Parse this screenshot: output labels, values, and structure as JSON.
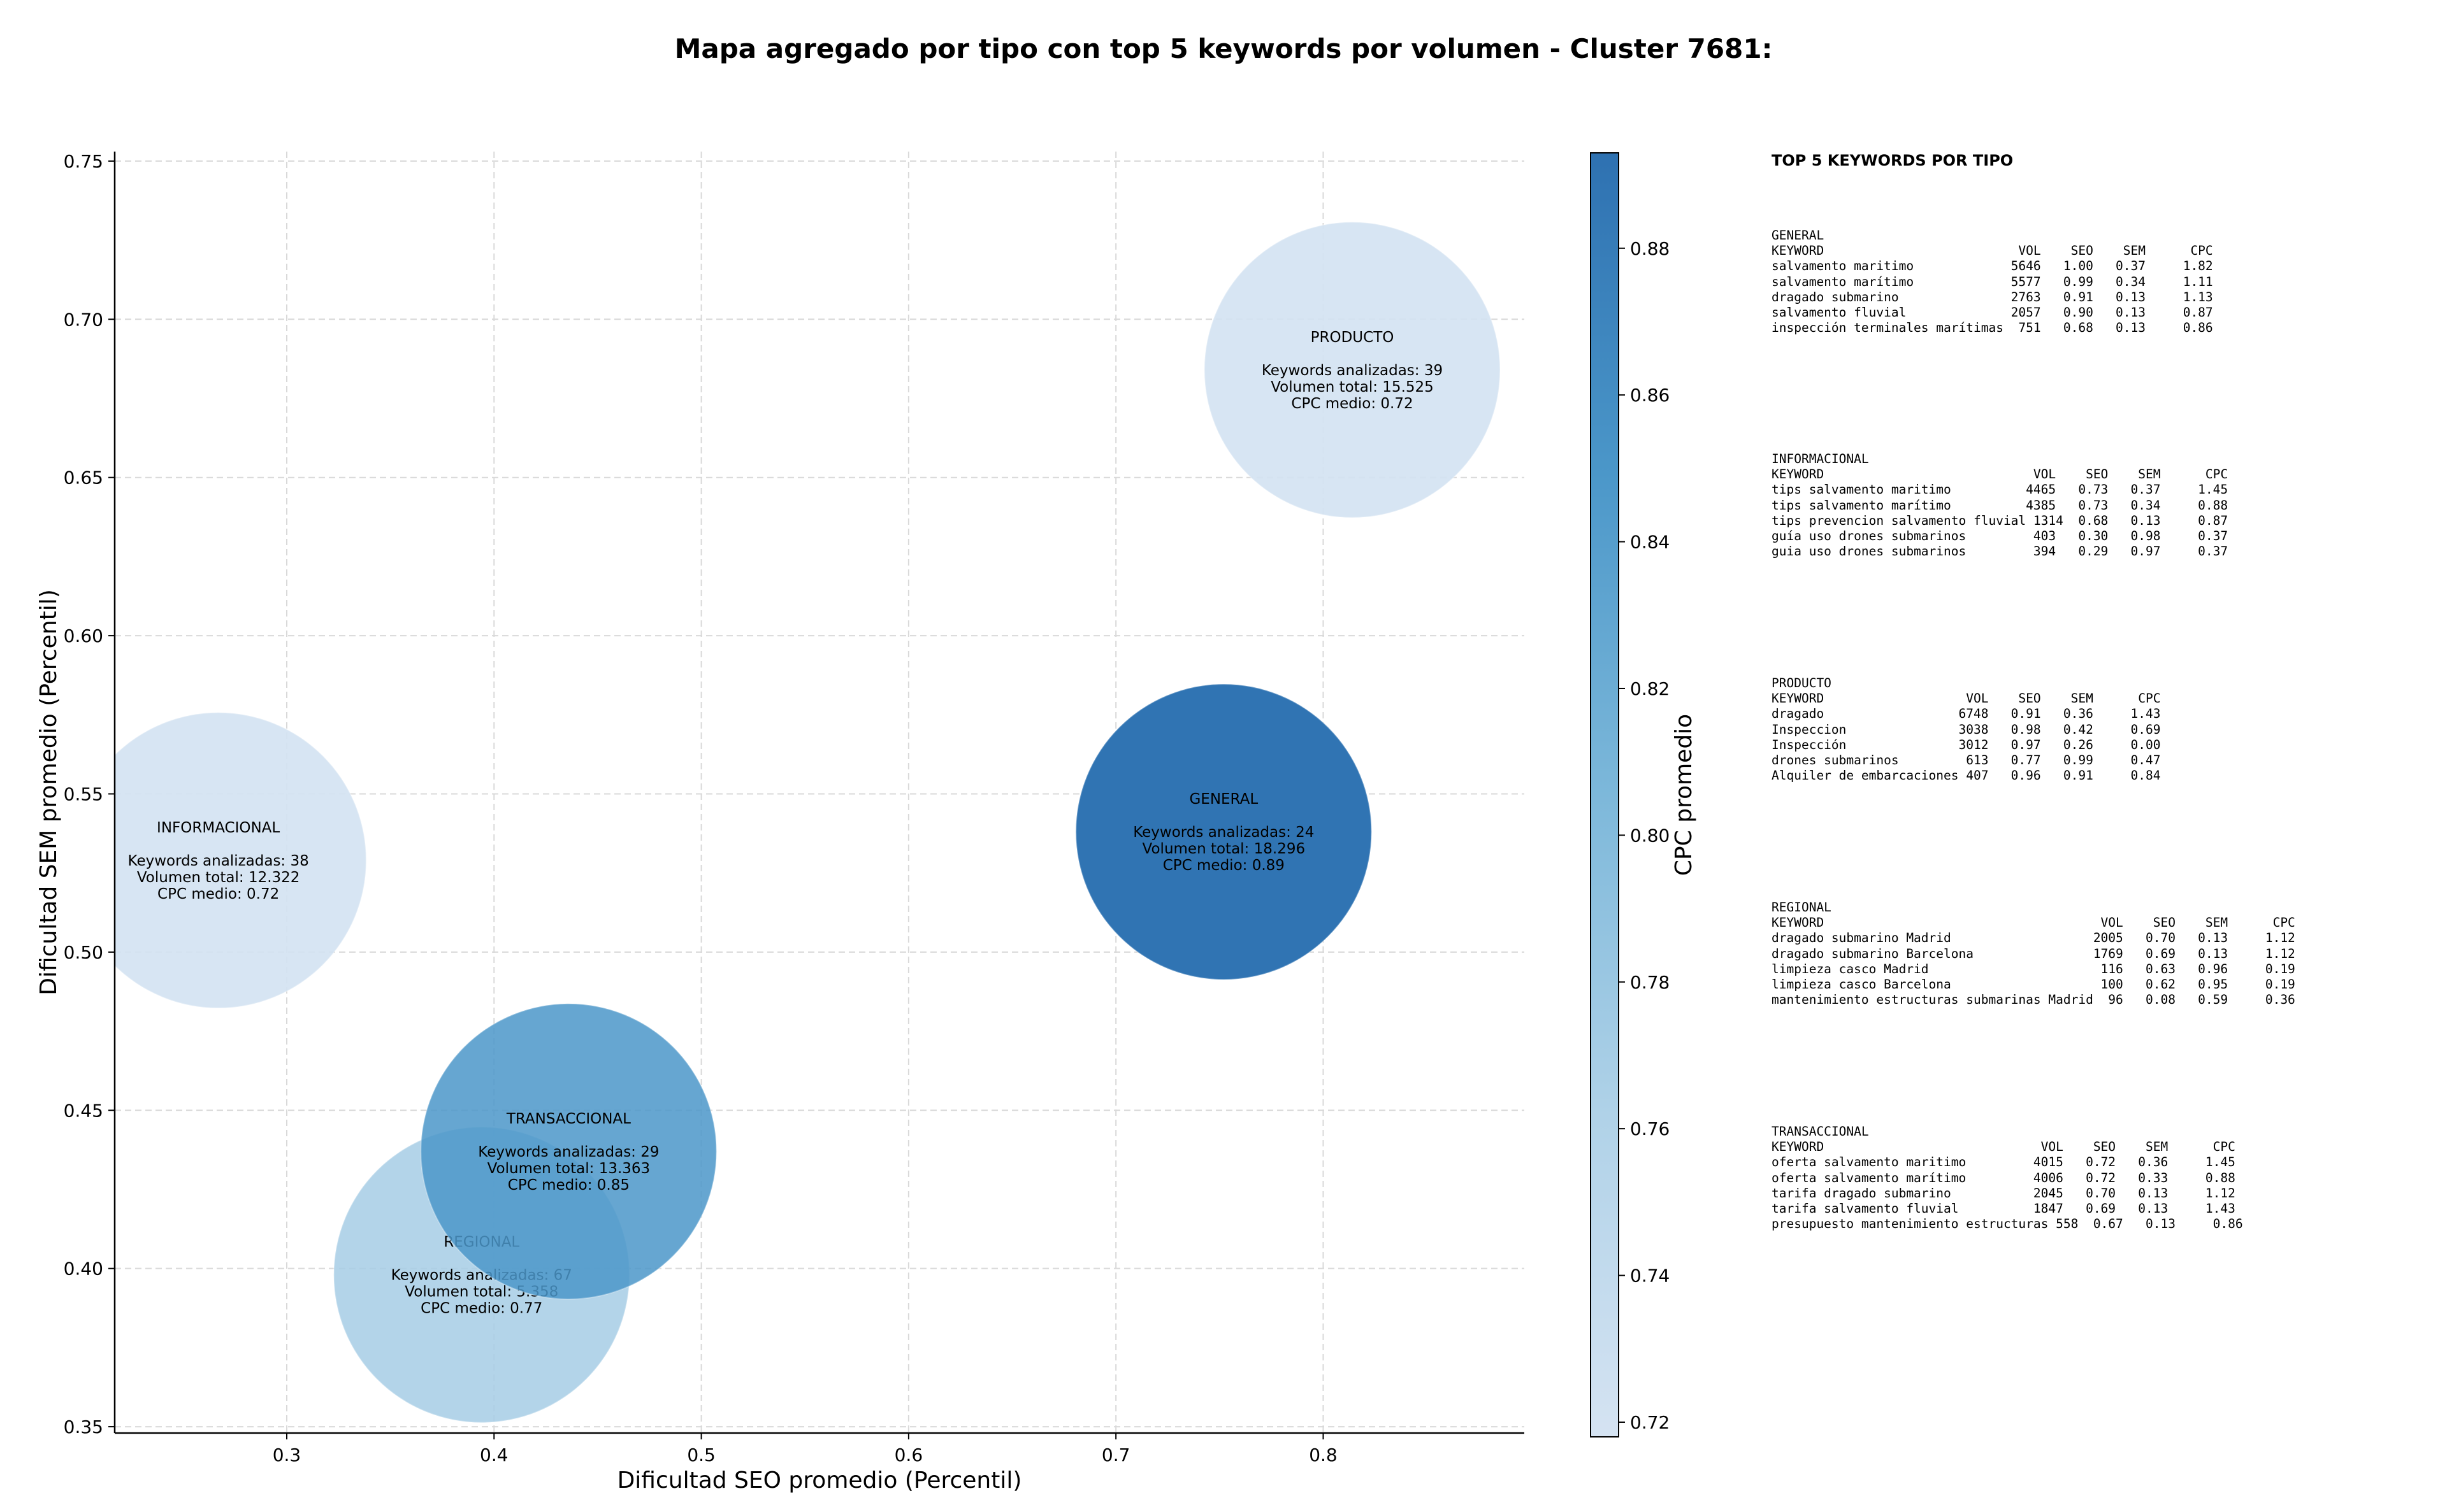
{
  "chart_data": {
    "type": "scatter",
    "title": "Mapa agregado por tipo con top 5 keywords por volumen - Cluster 7681:",
    "xlabel": "Dificultad SEO promedio (Percentil)",
    "ylabel": "Dificultad SEM promedio (Percentil)",
    "xlim": [
      0.217,
      0.897
    ],
    "ylim": [
      0.348,
      0.753
    ],
    "x_ticks": [
      "0.3",
      "0.4",
      "0.5",
      "0.6",
      "0.7",
      "0.8"
    ],
    "y_ticks": [
      "0.35",
      "0.40",
      "0.45",
      "0.50",
      "0.55",
      "0.60",
      "0.65",
      "0.70",
      "0.75"
    ],
    "grid": true,
    "colorbar": {
      "label": "CPC promedio",
      "range": [
        0.718,
        0.893
      ],
      "ticks": [
        "0.72",
        "0.74",
        "0.76",
        "0.78",
        "0.80",
        "0.82",
        "0.84",
        "0.86",
        "0.88"
      ],
      "color_low": "#d5e3f2",
      "color_high": "#2e71b1"
    },
    "points": [
      {
        "type": "PRODUCTO",
        "x": 0.814,
        "y": 0.684,
        "cpc": 0.72,
        "line1": "Keywords analizadas: 39",
        "line2": "Volumen total: 15.525",
        "line3": "CPC medio: 0.72",
        "alpha": 0.9
      },
      {
        "type": "GENERAL",
        "x": 0.752,
        "y": 0.538,
        "cpc": 0.89,
        "line1": "Keywords analizadas: 24",
        "line2": "Volumen total: 18.296",
        "line3": "CPC medio: 0.89",
        "alpha": 1.0
      },
      {
        "type": "INFORMACIONAL",
        "x": 0.267,
        "y": 0.529,
        "cpc": 0.72,
        "line1": "Keywords analizadas: 38",
        "line2": "Volumen total: 12.322",
        "line3": "CPC medio: 0.72",
        "alpha": 0.9
      },
      {
        "type": "REGIONAL",
        "x": 0.394,
        "y": 0.398,
        "cpc": 0.77,
        "line1": "Keywords analizadas: 67",
        "line2": "Volumen total: 5.358",
        "line3": "CPC medio: 0.77",
        "alpha": 0.85
      },
      {
        "type": "TRANSACCIONAL",
        "x": 0.436,
        "y": 0.437,
        "cpc": 0.85,
        "line1": "Keywords analizadas: 29",
        "line2": "Volumen total: 13.363",
        "line3": "CPC medio: 0.85",
        "alpha": 0.85
      }
    ]
  },
  "tables": {
    "title": "TOP 5 KEYWORDS POR TIPO",
    "blocks": [
      {
        "lines": [
          "GENERAL",
          "KEYWORD                          VOL    SEO    SEM      CPC",
          "salvamento maritimo             5646   1.00   0.37     1.82",
          "salvamento marítimo             5577   0.99   0.34     1.11",
          "dragado submarino               2763   0.91   0.13     1.13",
          "salvamento fluvial              2057   0.90   0.13     0.87",
          "inspección terminales marítimas  751   0.68   0.13     0.86"
        ]
      },
      {
        "lines": [
          "INFORMACIONAL",
          "KEYWORD                            VOL    SEO    SEM      CPC",
          "tips salvamento maritimo          4465   0.73   0.37     1.45",
          "tips salvamento marítimo          4385   0.73   0.34     0.88",
          "tips prevencion salvamento fluvial 1314  0.68   0.13     0.87",
          "guía uso drones submarinos         403   0.30   0.98     0.37",
          "guia uso drones submarinos         394   0.29   0.97     0.37"
        ]
      },
      {
        "lines": [
          "PRODUCTO",
          "KEYWORD                   VOL    SEO    SEM      CPC",
          "dragado                  6748   0.91   0.36     1.43",
          "Inspeccion               3038   0.98   0.42     0.69",
          "Inspección               3012   0.97   0.26     0.00",
          "drones submarinos         613   0.77   0.99     0.47",
          "Alquiler de embarcaciones 407   0.96   0.91     0.84"
        ]
      },
      {
        "lines": [
          "REGIONAL",
          "KEYWORD                                     VOL    SEO    SEM      CPC",
          "dragado submarino Madrid                   2005   0.70   0.13     1.12",
          "dragado submarino Barcelona                1769   0.69   0.13     1.12",
          "limpieza casco Madrid                       116   0.63   0.96     0.19",
          "limpieza casco Barcelona                    100   0.62   0.95     0.19",
          "mantenimiento estructuras submarinas Madrid  96   0.08   0.59     0.36"
        ]
      },
      {
        "lines": [
          "TRANSACCIONAL",
          "KEYWORD                             VOL    SEO    SEM      CPC",
          "oferta salvamento maritimo         4015   0.72   0.36     1.45",
          "oferta salvamento marítimo         4006   0.72   0.33     0.88",
          "tarifa dragado submarino           2045   0.70   0.13     1.12",
          "tarifa salvamento fluvial          1847   0.69   0.13     1.43",
          "presupuesto mantenimiento estructuras 558  0.67   0.13     0.86"
        ]
      }
    ]
  }
}
